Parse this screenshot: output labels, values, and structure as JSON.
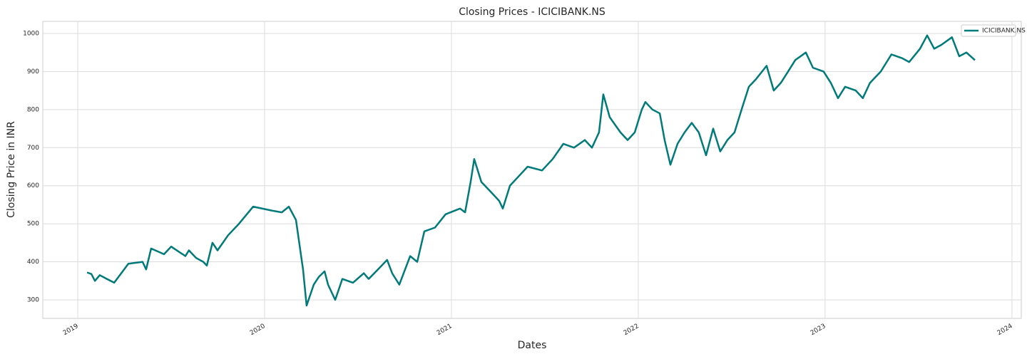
{
  "chart_data": {
    "type": "line",
    "title": "Closing Prices - ICICIBANK.NS",
    "x_label": "Dates",
    "y_label": "Closing Price in INR",
    "x": [
      2019.05,
      2019.073,
      2019.092,
      2019.118,
      2019.156,
      2019.195,
      2019.271,
      2019.347,
      2019.366,
      2019.393,
      2019.462,
      2019.5,
      2019.576,
      2019.595,
      2019.634,
      2019.672,
      2019.691,
      2019.721,
      2019.748,
      2019.805,
      2019.863,
      2019.939,
      2020.034,
      2020.092,
      2020.13,
      2020.168,
      2020.206,
      2020.225,
      2020.263,
      2020.29,
      2020.321,
      2020.34,
      2020.378,
      2020.416,
      2020.473,
      2020.531,
      2020.557,
      2020.607,
      2020.656,
      2020.683,
      2020.721,
      2020.779,
      2020.817,
      2020.855,
      2020.912,
      2020.969,
      2021.046,
      2021.073,
      2021.103,
      2021.122,
      2021.16,
      2021.218,
      2021.256,
      2021.275,
      2021.313,
      2021.37,
      2021.408,
      2021.485,
      2021.542,
      2021.599,
      2021.656,
      2021.714,
      2021.752,
      2021.79,
      2021.813,
      2021.847,
      2021.905,
      2021.943,
      2021.981,
      2022.019,
      2022.038,
      2022.076,
      2022.115,
      2022.141,
      2022.172,
      2022.21,
      2022.248,
      2022.286,
      2022.324,
      2022.363,
      2022.401,
      2022.439,
      2022.477,
      2022.515,
      2022.553,
      2022.592,
      2022.63,
      2022.687,
      2022.725,
      2022.763,
      2022.802,
      2022.84,
      2022.897,
      2022.935,
      2022.992,
      2023.031,
      2023.069,
      2023.107,
      2023.164,
      2023.202,
      2023.24,
      2023.298,
      2023.355,
      2023.412,
      2023.45,
      2023.508,
      2023.546,
      2023.584,
      2023.622,
      2023.679,
      2023.718,
      2023.756,
      2023.802
    ],
    "series": [
      {
        "name": "ICICIBANK.NS",
        "color": "#007a7a",
        "values": [
          372,
          368,
          350,
          365,
          355,
          345,
          395,
          400,
          380,
          435,
          420,
          440,
          415,
          430,
          410,
          400,
          390,
          450,
          430,
          470,
          500,
          545,
          535,
          530,
          545,
          510,
          380,
          285,
          340,
          360,
          375,
          340,
          300,
          355,
          345,
          370,
          355,
          380,
          405,
          370,
          340,
          415,
          400,
          480,
          490,
          525,
          540,
          530,
          610,
          670,
          610,
          580,
          560,
          540,
          600,
          630,
          650,
          640,
          670,
          710,
          700,
          720,
          700,
          740,
          840,
          780,
          740,
          720,
          740,
          800,
          820,
          800,
          790,
          720,
          655,
          710,
          740,
          765,
          740,
          680,
          750,
          690,
          720,
          740,
          800,
          860,
          880,
          915,
          850,
          870,
          900,
          930,
          950,
          910,
          900,
          870,
          830,
          860,
          850,
          830,
          870,
          900,
          945,
          935,
          925,
          960,
          995,
          960,
          970,
          990,
          940,
          950,
          930
        ]
      }
    ],
    "xlim": [
      2018.813,
      2024.05
    ],
    "ylim": [
      251.3,
      1031.8
    ],
    "xticks": [
      2019,
      2020,
      2021,
      2022,
      2023,
      2024
    ],
    "yticks": [
      300,
      400,
      500,
      600,
      700,
      800,
      900,
      1000
    ],
    "grid": true,
    "legend": "upper right"
  }
}
